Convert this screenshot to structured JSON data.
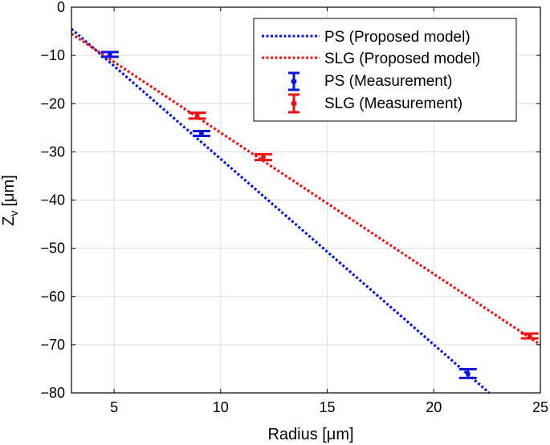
{
  "chart_data": {
    "type": "scatter",
    "title": "",
    "xlabel": "Radius [μm]",
    "ylabel_main": "Z",
    "ylabel_sub": "v",
    "ylabel_unit": "[μm]",
    "xlim": [
      3,
      25
    ],
    "ylim": [
      -80,
      0
    ],
    "xticks": [
      5,
      10,
      15,
      20,
      25
    ],
    "yticks": [
      0,
      -10,
      -20,
      -30,
      -40,
      -50,
      -60,
      -70,
      -80
    ],
    "xtick_labels": [
      "5",
      "10",
      "15",
      "20",
      "25"
    ],
    "ytick_labels": [
      "0",
      "−10",
      "−20",
      "−30",
      "−40",
      "−50",
      "−60",
      "−70",
      "−80"
    ],
    "grid": true,
    "legend_position": "top-right",
    "colors": {
      "PS": "#0a14e0",
      "SLG": "#ee1111"
    },
    "lines": [
      {
        "name": "PS (Proposed model)",
        "color": "#0a14e0",
        "style": "dotted",
        "x": [
          3,
          22.6
        ],
        "y": [
          -4.5,
          -80
        ]
      },
      {
        "name": "SLG (Proposed model)",
        "color": "#ee1111",
        "style": "dotted",
        "x": [
          3,
          25
        ],
        "y": [
          -5.5,
          -70
        ]
      }
    ],
    "measurements": [
      {
        "name": "PS (Measurement)",
        "color": "#0a14e0",
        "points": [
          {
            "x": 4.8,
            "y": -9.8,
            "err": 0.5
          },
          {
            "x": 9.1,
            "y": -26.2,
            "err": 0.5
          },
          {
            "x": 21.6,
            "y": -76,
            "err": 0.9
          }
        ]
      },
      {
        "name": "SLG (Measurement)",
        "color": "#ee1111",
        "points": [
          {
            "x": 8.9,
            "y": -22.5,
            "err": 0.6
          },
          {
            "x": 12.0,
            "y": -31.1,
            "err": 0.6
          },
          {
            "x": 24.5,
            "y": -68.2,
            "err": 0.5
          }
        ]
      }
    ]
  }
}
